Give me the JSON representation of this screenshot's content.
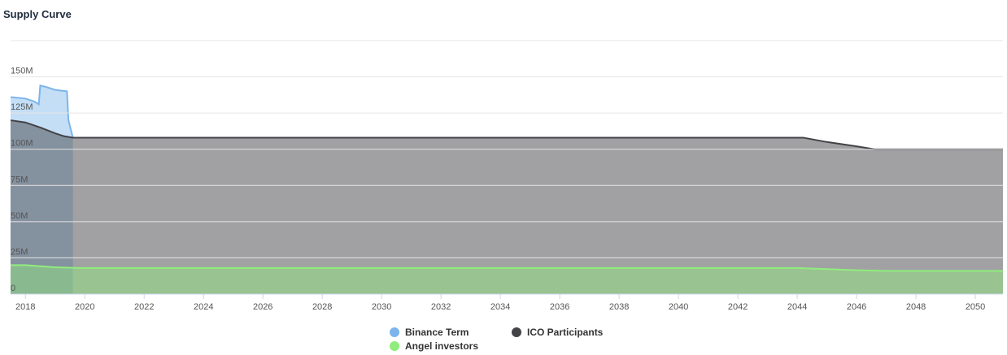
{
  "chart_data": {
    "type": "area",
    "title": "Supply Curve",
    "xlim": [
      2017.5,
      2050.93
    ],
    "xticks": [
      2018,
      2020,
      2022,
      2024,
      2026,
      2028,
      2030,
      2032,
      2034,
      2036,
      2038,
      2040,
      2042,
      2044,
      2046,
      2048,
      2050
    ],
    "ylim": [
      0,
      175000000
    ],
    "yticks": [
      0,
      {
        "value": 25000000,
        "label": "25M"
      },
      {
        "value": 50000000,
        "label": "50M"
      },
      {
        "value": 75000000,
        "label": "75M"
      },
      {
        "value": 100000000,
        "label": "100M"
      },
      {
        "value": 125000000,
        "label": "125M"
      },
      {
        "value": 150000000,
        "label": "150M"
      }
    ],
    "grid": true,
    "legend": "bottom",
    "series": [
      {
        "name": "Binance Term",
        "color": "#7cb5ec",
        "x": [
          2017.5,
          2018,
          2018.3,
          2018.45,
          2018.5,
          2018.7,
          2019,
          2019.4,
          2019.45,
          2019.6
        ],
        "values": [
          136000000,
          135000000,
          133000000,
          131000000,
          144000000,
          143000000,
          141000000,
          140000000,
          120000000,
          108000000
        ]
      },
      {
        "name": "ICO Participants",
        "color": "#434348",
        "x": [
          2017.5,
          2018,
          2018.5,
          2019,
          2019.3,
          2019.6,
          2044.2,
          2045,
          2046,
          2046.6,
          2050.93
        ],
        "values": [
          120000000,
          118500000,
          115000000,
          111000000,
          109000000,
          108000000,
          108000000,
          105000000,
          102000000,
          100000000,
          100000000
        ]
      },
      {
        "name": "Angel investors",
        "color": "#90ed7d",
        "x": [
          2017.5,
          2018,
          2019,
          2019.8,
          2044,
          2046,
          2047,
          2050.93
        ],
        "values": [
          20000000,
          20000000,
          18500000,
          18000000,
          18000000,
          16500000,
          16000000,
          16000000
        ]
      }
    ]
  }
}
